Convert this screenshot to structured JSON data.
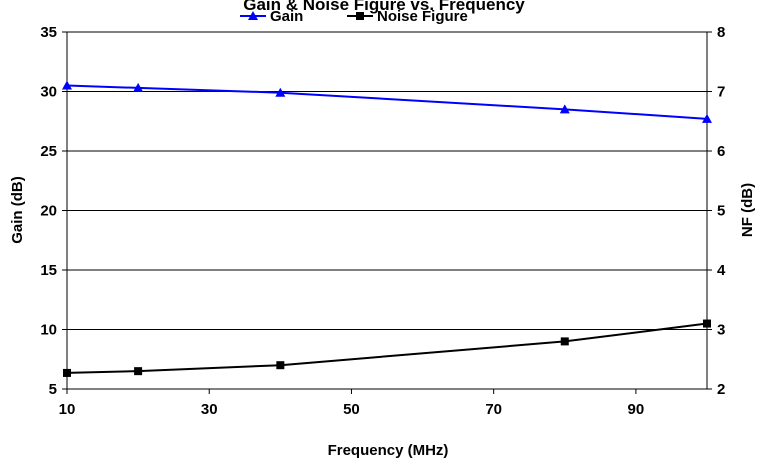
{
  "chart_data": {
    "type": "line",
    "title": "Gain & Noise Figure vs. Frequency",
    "xlabel": "Frequency (MHz)",
    "ylabel": "Gain (dB)",
    "y2label": "NF (dB)",
    "xlim": [
      10,
      100
    ],
    "ylim": [
      5,
      35
    ],
    "y2lim": [
      2,
      8
    ],
    "xticks": [
      "10",
      "30",
      "50",
      "70",
      "90"
    ],
    "yticks": [
      "5",
      "10",
      "15",
      "20",
      "25",
      "30",
      "35"
    ],
    "y2ticks": [
      "2",
      "3",
      "4",
      "5",
      "6",
      "7",
      "8"
    ],
    "grid": "horizontal",
    "legend_position": "top",
    "series": [
      {
        "name": "Gain",
        "axis": "left",
        "color": "#0000ff",
        "marker": "triangle",
        "x": [
          10,
          20,
          40,
          80,
          100
        ],
        "y": [
          30.5,
          30.3,
          29.9,
          28.5,
          27.7
        ]
      },
      {
        "name": "Noise Figure",
        "axis": "right",
        "color": "#000000",
        "marker": "square",
        "x": [
          10,
          20,
          40,
          80,
          100
        ],
        "y": [
          2.27,
          2.3,
          2.4,
          2.8,
          3.1
        ]
      }
    ]
  }
}
